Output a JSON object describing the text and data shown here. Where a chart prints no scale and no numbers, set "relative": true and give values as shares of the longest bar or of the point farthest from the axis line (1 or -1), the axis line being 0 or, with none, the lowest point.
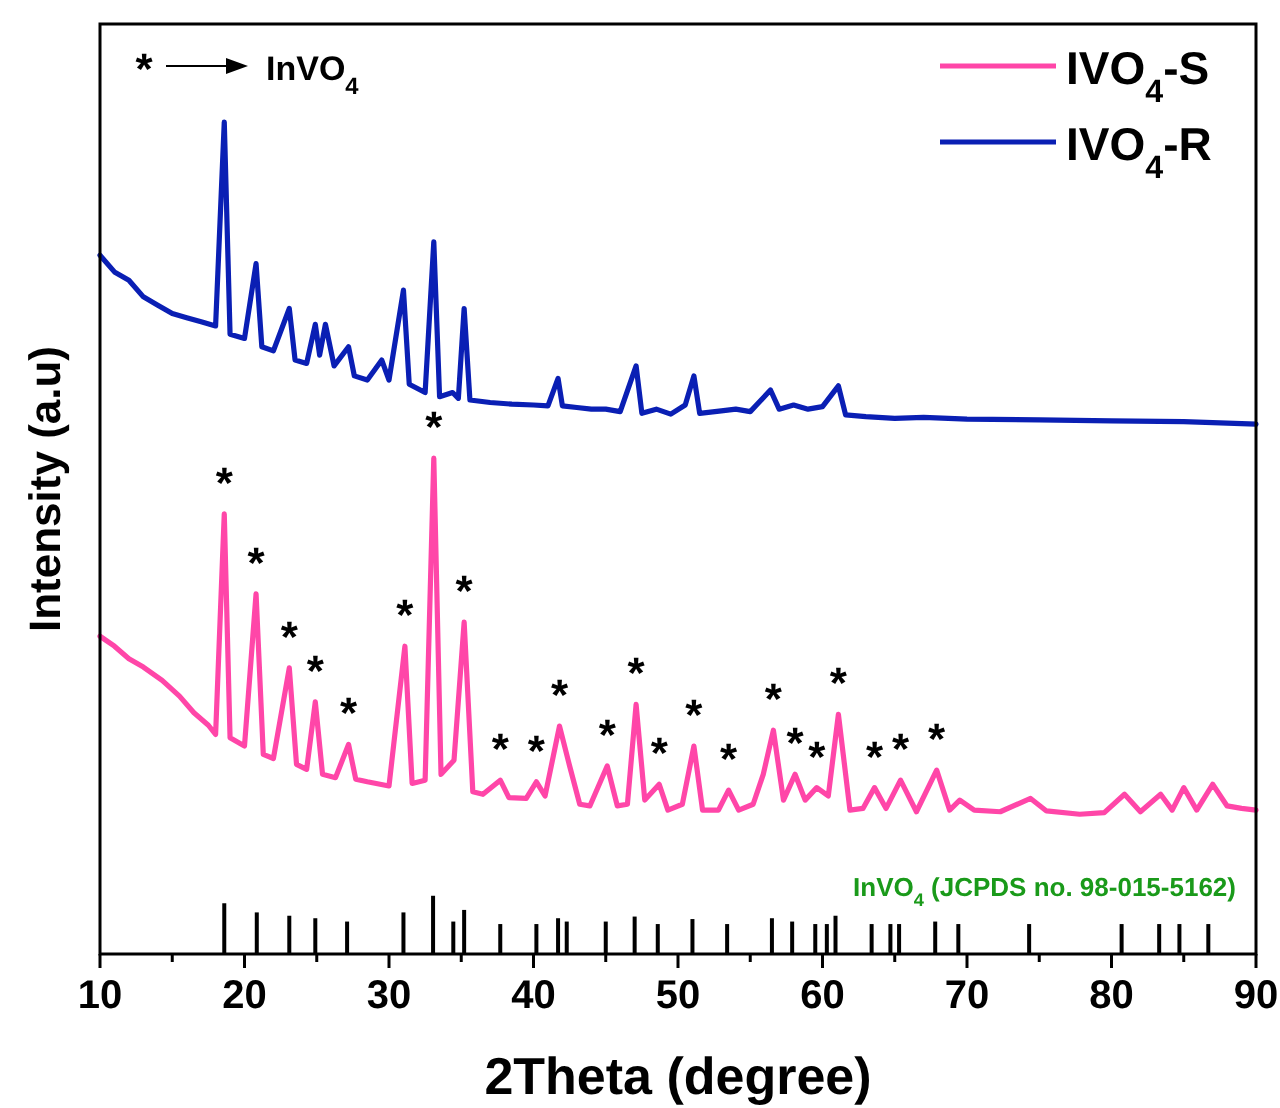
{
  "chart_data": {
    "type": "line",
    "relative": true,
    "xlabel": "2Theta (degree)",
    "ylabel": "Intensity (a.u)",
    "xlim": [
      10,
      90
    ],
    "xticks": [
      10,
      {
        "value": 15,
        "label": null
      },
      20,
      {
        "value": 25,
        "label": null
      },
      30,
      {
        "value": 35,
        "label": null
      },
      40,
      {
        "value": 45,
        "label": null
      },
      50,
      {
        "value": 55,
        "label": null
      },
      60,
      {
        "value": 65,
        "label": null
      },
      70,
      {
        "value": 75,
        "label": null
      },
      80,
      {
        "value": 85,
        "label": null
      },
      90
    ],
    "legend": "top right",
    "series": [
      {
        "name": "IVO$_{4}$-S",
        "color": "#ff46a8",
        "x": [
          10,
          11,
          12,
          13,
          14.3,
          15.5,
          16.5,
          17.5,
          18,
          18.6,
          19,
          20,
          20.8,
          21.3,
          22,
          23.1,
          23.6,
          24.3,
          24.9,
          25.4,
          26.3,
          27.2,
          27.7,
          28.5,
          30,
          31.1,
          31.6,
          32.5,
          33.1,
          33.6,
          34.5,
          35.2,
          35.8,
          36.5,
          37.7,
          38.3,
          39.5,
          40.2,
          40.8,
          41.8,
          42.5,
          43.2,
          43.9,
          45.1,
          45.8,
          46.5,
          47.1,
          47.7,
          48.7,
          49.3,
          50.3,
          51.1,
          51.7,
          52.8,
          53.5,
          54.2,
          55.2,
          55.9,
          56.6,
          57.3,
          58.1,
          58.8,
          59.6,
          60.4,
          61.1,
          61.9,
          62.8,
          63.6,
          64.4,
          65.4,
          66.5,
          67.9,
          68.8,
          69.5,
          70.5,
          72.3,
          74.4,
          75.5,
          77.8,
          79.5,
          80.9,
          82,
          83.4,
          84.2,
          85,
          85.9,
          87,
          88,
          89,
          90
        ],
        "values": [
          0.382,
          0.37,
          0.355,
          0.345,
          0.329,
          0.31,
          0.29,
          0.275,
          0.264,
          0.529,
          0.26,
          0.25,
          0.433,
          0.24,
          0.235,
          0.344,
          0.228,
          0.222,
          0.303,
          0.216,
          0.212,
          0.252,
          0.21,
          0.207,
          0.202,
          0.37,
          0.205,
          0.209,
          0.596,
          0.216,
          0.233,
          0.399,
          0.195,
          0.192,
          0.209,
          0.188,
          0.187,
          0.207,
          0.19,
          0.274,
          0.226,
          0.18,
          0.178,
          0.226,
          0.178,
          0.18,
          0.3,
          0.185,
          0.204,
          0.173,
          0.18,
          0.25,
          0.173,
          0.173,
          0.197,
          0.173,
          0.18,
          0.216,
          0.269,
          0.185,
          0.216,
          0.185,
          0.2,
          0.19,
          0.288,
          0.173,
          0.175,
          0.2,
          0.175,
          0.209,
          0.171,
          0.221,
          0.173,
          0.185,
          0.173,
          0.171,
          0.187,
          0.172,
          0.168,
          0.17,
          0.192,
          0.171,
          0.192,
          0.173,
          0.2,
          0.173,
          0.204,
          0.178,
          0.175,
          0.173
        ]
      },
      {
        "name": "IVO$_{4}$-R",
        "color": "#0a1fb4",
        "x": [
          10,
          11,
          12,
          13,
          14,
          15,
          16,
          17,
          18,
          18.6,
          19,
          20,
          20.8,
          21.2,
          22,
          23.1,
          23.5,
          24.3,
          24.9,
          25.2,
          25.6,
          26.2,
          27.2,
          27.6,
          28.5,
          29.5,
          30,
          31,
          31.4,
          32.5,
          33.1,
          33.5,
          34.4,
          34.8,
          35.2,
          35.6,
          37,
          38.5,
          40,
          41,
          41.7,
          42,
          43,
          44,
          45,
          46,
          47.1,
          47.5,
          48.5,
          49.5,
          50.5,
          51.1,
          51.5,
          53,
          54,
          55,
          56.4,
          57,
          58,
          59,
          60,
          61.1,
          61.6,
          63,
          65,
          67,
          70,
          75,
          80,
          85,
          90
        ],
        "values": [
          0.84,
          0.82,
          0.81,
          0.79,
          0.78,
          0.77,
          0.765,
          0.76,
          0.755,
          1.0,
          0.745,
          0.74,
          0.83,
          0.73,
          0.725,
          0.776,
          0.714,
          0.71,
          0.757,
          0.72,
          0.757,
          0.707,
          0.73,
          0.695,
          0.69,
          0.714,
          0.69,
          0.798,
          0.685,
          0.675,
          0.856,
          0.67,
          0.675,
          0.668,
          0.776,
          0.666,
          0.663,
          0.661,
          0.66,
          0.659,
          0.692,
          0.659,
          0.657,
          0.655,
          0.655,
          0.652,
          0.707,
          0.65,
          0.655,
          0.649,
          0.66,
          0.695,
          0.65,
          0.653,
          0.655,
          0.652,
          0.678,
          0.655,
          0.66,
          0.655,
          0.658,
          0.683,
          0.648,
          0.646,
          0.644,
          0.645,
          0.643,
          0.642,
          0.641,
          0.64,
          0.637
        ]
      },
      {
        "color": "#000000",
        "type": "bar",
        "x": [
          18.6,
          20.85,
          23.1,
          24.9,
          27.1,
          31.0,
          33.05,
          34.45,
          35.2,
          37.7,
          40.2,
          41.7,
          42.3,
          45.0,
          47.0,
          48.6,
          51.0,
          53.4,
          56.5,
          57.9,
          59.5,
          60.3,
          60.9,
          63.4,
          64.7,
          65.3,
          67.8,
          69.4,
          74.3,
          80.7,
          83.3,
          84.7,
          86.7
        ],
        "values": [
          0.061,
          0.05,
          0.046,
          0.043,
          0.039,
          0.05,
          0.07,
          0.039,
          0.053,
          0.036,
          0.036,
          0.043,
          0.039,
          0.039,
          0.045,
          0.036,
          0.042,
          0.036,
          0.043,
          0.039,
          0.036,
          0.036,
          0.046,
          0.036,
          0.036,
          0.036,
          0.039,
          0.036,
          0.036,
          0.036,
          0.036,
          0.036,
          0.036
        ]
      }
    ],
    "annotations": [
      "*",
      "InVO$_{4}$",
      "InVO$_{4}$ (JCPDS no. 98-015-5162)",
      {
        "text": "*",
        "x": 18.6,
        "y": 0.529
      },
      {
        "text": "*",
        "x": 20.8,
        "y": 0.433
      },
      {
        "text": "*",
        "x": 23.1,
        "y": 0.344
      },
      {
        "text": "*",
        "x": 24.9,
        "y": 0.303
      },
      {
        "text": "*",
        "x": 27.2,
        "y": 0.252
      },
      {
        "text": "*",
        "x": 31.1,
        "y": 0.37
      },
      {
        "text": "*",
        "x": 33.1,
        "y": 0.596
      },
      {
        "text": "*",
        "x": 35.2,
        "y": 0.399
      },
      {
        "text": "*",
        "x": 37.7,
        "y": 0.209
      },
      {
        "text": "*",
        "x": 40.2,
        "y": 0.207
      },
      {
        "text": "*",
        "x": 41.8,
        "y": 0.274
      },
      {
        "text": "*",
        "x": 45.1,
        "y": 0.226
      },
      {
        "text": "*",
        "x": 47.1,
        "y": 0.3
      },
      {
        "text": "*",
        "x": 48.7,
        "y": 0.204
      },
      {
        "text": "*",
        "x": 51.1,
        "y": 0.25
      },
      {
        "text": "*",
        "x": 53.5,
        "y": 0.197
      },
      {
        "text": "*",
        "x": 56.6,
        "y": 0.269
      },
      {
        "text": "*",
        "x": 58.1,
        "y": 0.216
      },
      {
        "text": "*",
        "x": 59.6,
        "y": 0.2
      },
      {
        "text": "*",
        "x": 61.1,
        "y": 0.288
      },
      {
        "text": "*",
        "x": 63.6,
        "y": 0.2
      },
      {
        "text": "*",
        "x": 65.4,
        "y": 0.209
      },
      {
        "text": "*",
        "x": 67.9,
        "y": 0.221
      }
    ]
  }
}
